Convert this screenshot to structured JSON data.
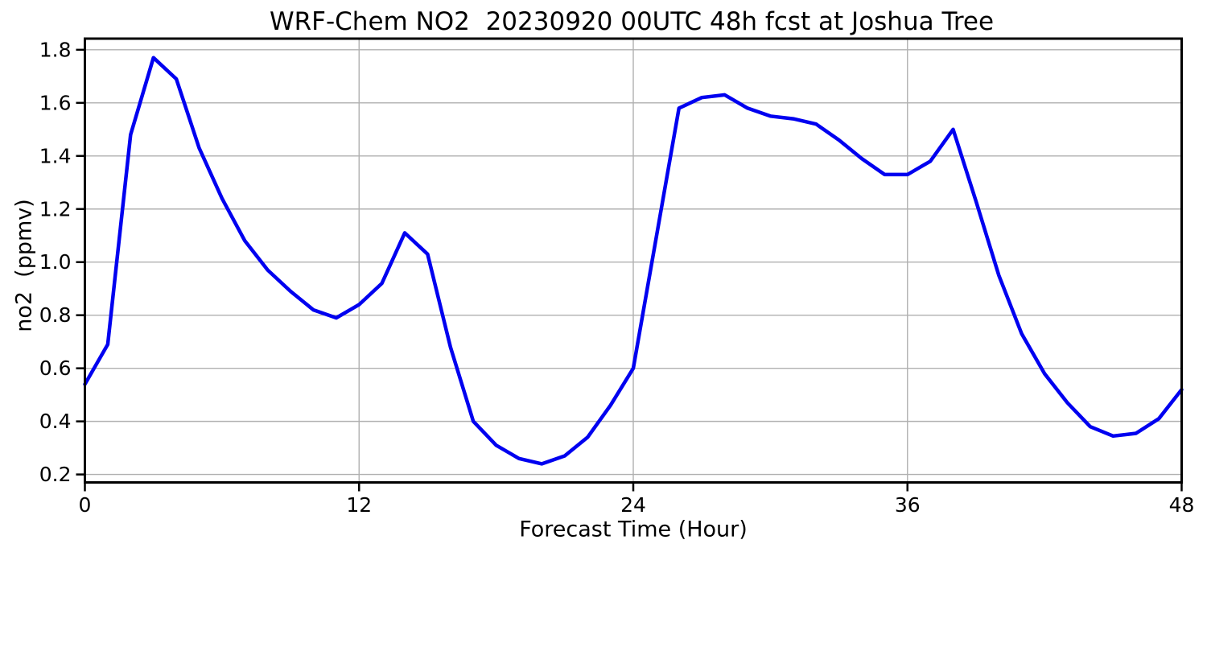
{
  "figure": {
    "background": "#ffffff"
  },
  "chart_data": {
    "type": "line",
    "title": "WRF-Chem NO2  20230920 00UTC 48h fcst at Joshua Tree",
    "xlabel": "Forecast Time (Hour)",
    "ylabel": "no2  (ppmv)",
    "series_name": "no2 forecast",
    "x": [
      0,
      1,
      2,
      3,
      4,
      5,
      6,
      7,
      8,
      9,
      10,
      11,
      12,
      13,
      14,
      15,
      16,
      17,
      18,
      19,
      20,
      21,
      22,
      23,
      24,
      25,
      26,
      27,
      28,
      29,
      30,
      31,
      32,
      33,
      34,
      35,
      36,
      37,
      38,
      39,
      40,
      41,
      42,
      43,
      44,
      45,
      46,
      47,
      48
    ],
    "values": [
      0.54,
      0.69,
      1.48,
      1.77,
      1.69,
      1.43,
      1.24,
      1.08,
      0.97,
      0.89,
      0.82,
      0.79,
      0.84,
      0.92,
      1.11,
      1.03,
      0.68,
      0.4,
      0.31,
      0.26,
      0.24,
      0.27,
      0.34,
      0.46,
      0.6,
      1.09,
      1.58,
      1.62,
      1.63,
      1.58,
      1.55,
      1.54,
      1.52,
      1.46,
      1.39,
      1.33,
      1.33,
      1.38,
      1.5,
      1.23,
      0.95,
      0.73,
      0.58,
      0.47,
      0.38,
      0.345,
      0.355,
      0.41,
      0.52
    ],
    "xlim": [
      0,
      48
    ],
    "ylim": [
      0.17,
      1.842
    ],
    "xticks": [
      0,
      12,
      24,
      36,
      48
    ],
    "xtick_labels": [
      "0",
      "12",
      "24",
      "36",
      "48"
    ],
    "yticks": [
      0.2,
      0.4,
      0.6,
      0.8,
      1.0,
      1.2,
      1.4,
      1.6,
      1.8
    ],
    "ytick_labels": [
      "0.2",
      "0.4",
      "0.6",
      "0.8",
      "1.0",
      "1.2",
      "1.4",
      "1.6",
      "1.8"
    ],
    "grid": true,
    "grid_color": "#b0b0b0",
    "line_color": "#0000f0",
    "line_width": 4.5,
    "spine_color": "#000000",
    "legend": "none"
  }
}
